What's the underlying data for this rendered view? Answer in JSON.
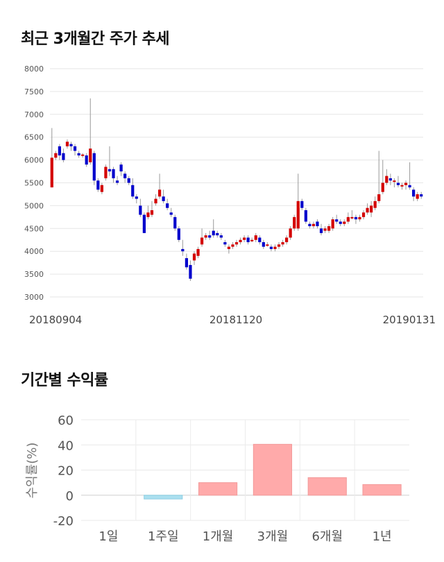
{
  "section1": {
    "title": "최근 3개월간 주가 추세"
  },
  "section2": {
    "title": "기간별 수익률"
  },
  "chart_data": [
    {
      "type": "candlestick",
      "ylim": [
        3000,
        8000
      ],
      "yticks": [
        3000,
        3500,
        4000,
        4500,
        5000,
        5500,
        6000,
        6500,
        7000,
        7500,
        8000
      ],
      "x_labels": [
        "20180904",
        "20181120",
        "20190131"
      ],
      "grid": true,
      "up_color": "#d40000",
      "down_color": "#0000cc",
      "candles": [
        [
          5400,
          6050,
          6700,
          5400
        ],
        [
          6050,
          6150,
          6200,
          6000
        ],
        [
          6300,
          6100,
          6350,
          6000
        ],
        [
          6150,
          6000,
          6250,
          5950
        ],
        [
          6300,
          6400,
          6450,
          6250
        ],
        [
          6350,
          6300,
          6400,
          6200
        ],
        [
          6300,
          6200,
          6350,
          6100
        ],
        [
          6150,
          6100,
          6200,
          6050
        ],
        [
          6100,
          6120,
          6150,
          6050
        ],
        [
          6100,
          5900,
          6150,
          5850
        ],
        [
          5950,
          6250,
          7350,
          5900
        ],
        [
          6150,
          5550,
          6200,
          5450
        ],
        [
          5550,
          5350,
          5600,
          5300
        ],
        [
          5300,
          5450,
          5500,
          5250
        ],
        [
          5600,
          5850,
          5900,
          5550
        ],
        [
          5800,
          5750,
          6300,
          5650
        ],
        [
          5800,
          5600,
          5850,
          5500
        ],
        [
          5550,
          5500,
          5650,
          5450
        ],
        [
          5900,
          5750,
          5950,
          5650
        ],
        [
          5700,
          5600,
          5750,
          5500
        ],
        [
          5600,
          5500,
          5650,
          5450
        ],
        [
          5450,
          5200,
          5600,
          5150
        ],
        [
          5200,
          5150,
          5250,
          5050
        ],
        [
          5000,
          4800,
          5150,
          4750
        ],
        [
          4800,
          4400,
          4850,
          4400
        ],
        [
          4750,
          4850,
          5000,
          4700
        ],
        [
          4800,
          4900,
          5100,
          4750
        ],
        [
          5050,
          5150,
          5250,
          5000
        ],
        [
          5200,
          5350,
          5700,
          5150
        ],
        [
          5200,
          5100,
          5350,
          5050
        ],
        [
          5050,
          4950,
          5150,
          4900
        ],
        [
          4850,
          4800,
          4950,
          4750
        ],
        [
          4750,
          4500,
          4800,
          4450
        ],
        [
          4500,
          4250,
          4550,
          4200
        ],
        [
          4050,
          4000,
          4250,
          3900
        ],
        [
          3850,
          3650,
          3950,
          3600
        ],
        [
          3700,
          3400,
          3800,
          3350
        ],
        [
          3800,
          3950,
          4000,
          3700
        ],
        [
          3900,
          4050,
          4100,
          3850
        ],
        [
          4150,
          4300,
          4500,
          4100
        ],
        [
          4300,
          4350,
          4400,
          4250
        ],
        [
          4350,
          4300,
          4450,
          4250
        ],
        [
          4450,
          4350,
          4700,
          4300
        ],
        [
          4400,
          4350,
          4450,
          4300
        ],
        [
          4350,
          4300,
          4400,
          4250
        ],
        [
          4200,
          4150,
          4250,
          4100
        ],
        [
          4050,
          4100,
          4150,
          3950
        ],
        [
          4100,
          4150,
          4200,
          4050
        ],
        [
          4150,
          4200,
          4250,
          4100
        ],
        [
          4200,
          4250,
          4300,
          4150
        ],
        [
          4250,
          4300,
          4350,
          4200
        ],
        [
          4300,
          4200,
          4350,
          4150
        ],
        [
          4250,
          4250,
          4300,
          4200
        ],
        [
          4250,
          4350,
          4400,
          4200
        ],
        [
          4300,
          4200,
          4350,
          4150
        ],
        [
          4200,
          4100,
          4250,
          4050
        ],
        [
          4150,
          4150,
          4200,
          4100
        ],
        [
          4100,
          4050,
          4150,
          4000
        ],
        [
          4050,
          4100,
          4150,
          4000
        ],
        [
          4100,
          4150,
          4200,
          4050
        ],
        [
          4150,
          4200,
          4250,
          4100
        ],
        [
          4200,
          4300,
          4350,
          4150
        ],
        [
          4300,
          4500,
          4550,
          4250
        ],
        [
          4500,
          4750,
          4800,
          4450
        ],
        [
          4500,
          5100,
          5700,
          4450
        ],
        [
          5100,
          4950,
          5150,
          4900
        ],
        [
          4900,
          4650,
          4950,
          4600
        ],
        [
          4600,
          4550,
          4650,
          4500
        ],
        [
          4550,
          4600,
          4650,
          4500
        ],
        [
          4650,
          4550,
          4700,
          4500
        ],
        [
          4500,
          4400,
          4600,
          4350
        ],
        [
          4450,
          4500,
          4550,
          4400
        ],
        [
          4450,
          4550,
          4600,
          4400
        ],
        [
          4500,
          4700,
          4750,
          4450
        ],
        [
          4700,
          4650,
          4800,
          4600
        ],
        [
          4650,
          4600,
          4700,
          4550
        ],
        [
          4600,
          4650,
          4700,
          4550
        ],
        [
          4650,
          4750,
          4850,
          4600
        ],
        [
          4750,
          4750,
          4900,
          4700
        ],
        [
          4750,
          4700,
          4800,
          4600
        ],
        [
          4700,
          4750,
          4800,
          4650
        ],
        [
          4750,
          4850,
          4900,
          4700
        ],
        [
          4850,
          4950,
          5050,
          4800
        ],
        [
          4850,
          5000,
          5100,
          4750
        ],
        [
          4950,
          5100,
          5200,
          4900
        ],
        [
          5100,
          5250,
          6200,
          5050
        ],
        [
          5300,
          5500,
          6000,
          5250
        ],
        [
          5500,
          5650,
          5800,
          5450
        ],
        [
          5600,
          5550,
          5700,
          5450
        ],
        [
          5550,
          5550,
          5600,
          5400
        ],
        [
          5500,
          5450,
          5650,
          5400
        ],
        [
          5450,
          5450,
          5500,
          5350
        ],
        [
          5450,
          5500,
          5550,
          5350
        ],
        [
          5450,
          5400,
          5950,
          5350
        ],
        [
          5350,
          5200,
          5400,
          5100
        ],
        [
          5150,
          5250,
          5300,
          5100
        ],
        [
          5250,
          5200,
          5300,
          5150
        ]
      ]
    },
    {
      "type": "bar",
      "categories": [
        "1일",
        "1주일",
        "1개월",
        "3개월",
        "6개월",
        "1년"
      ],
      "values": [
        0,
        -3,
        10,
        40.5,
        14,
        8.5
      ],
      "ylabel": "수익률(%)",
      "ylim": [
        -20,
        60
      ],
      "yticks": [
        -20,
        0,
        20,
        40,
        60
      ],
      "pos_color": "#ffaaaa",
      "neg_color": "#aadfef",
      "grid": true
    }
  ]
}
